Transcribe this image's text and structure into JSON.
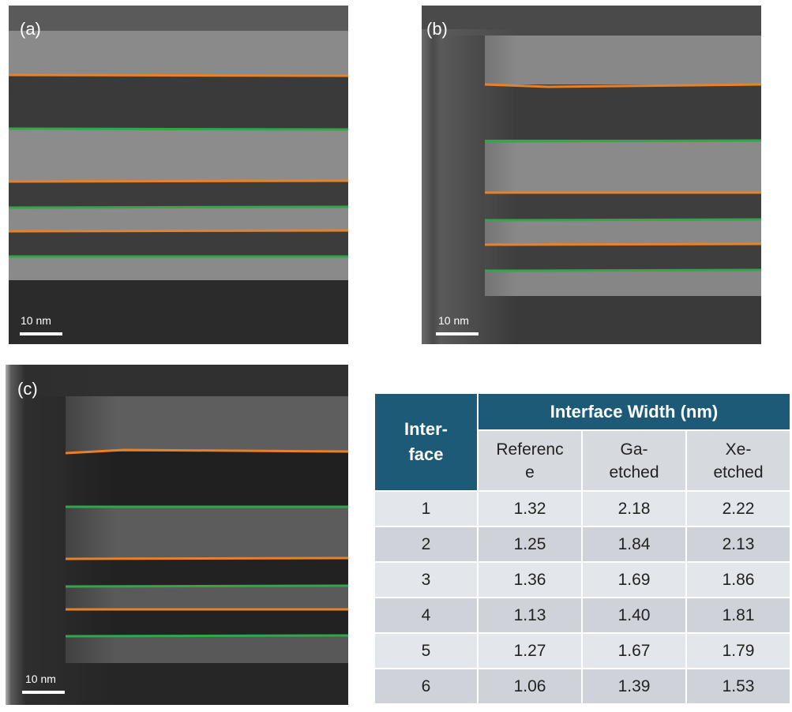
{
  "figure": {
    "panels": [
      {
        "label": "(a)",
        "scale_bar": "10 nm"
      },
      {
        "label": "(b)",
        "scale_bar": "10 nm"
      },
      {
        "label": "(c)",
        "scale_bar": "10 nm"
      }
    ],
    "colors": {
      "orange_line": "#e8822a",
      "green_line": "#2fa84a",
      "header": "#1c5a78"
    }
  },
  "table": {
    "group_header": "Interface Width (nm)",
    "row_header": "Inter-\nface",
    "columns": [
      "Referenc\ne",
      "Ga-\netched",
      "Xe-\netched"
    ],
    "rows": [
      {
        "interface": "1",
        "reference": "1.32",
        "ga": "2.18",
        "xe": "2.22"
      },
      {
        "interface": "2",
        "reference": "1.25",
        "ga": "1.84",
        "xe": "2.13"
      },
      {
        "interface": "3",
        "reference": "1.36",
        "ga": "1.69",
        "xe": "1.86"
      },
      {
        "interface": "4",
        "reference": "1.13",
        "ga": "1.40",
        "xe": "1.81"
      },
      {
        "interface": "5",
        "reference": "1.27",
        "ga": "1.67",
        "xe": "1.79"
      },
      {
        "interface": "6",
        "reference": "1.06",
        "ga": "1.39",
        "xe": "1.53"
      }
    ]
  }
}
